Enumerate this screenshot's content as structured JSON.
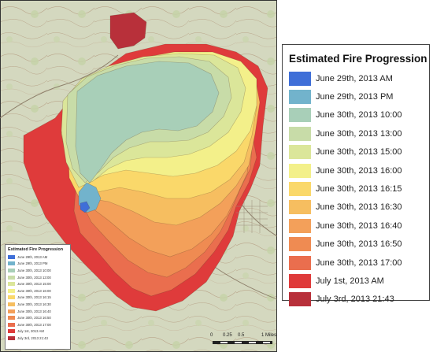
{
  "colors": {
    "june29_am": "#3f6fd8",
    "june29_pm": "#72b3cc",
    "june30_1000": "#a8cfb8",
    "june30_1300": "#c8dca8",
    "june30_1500": "#dbe69a",
    "june30_1600": "#f3f08a",
    "june30_1615": "#fad86a",
    "june30_1630": "#f6be60",
    "june30_1640": "#f3a05a",
    "june30_1650": "#ef8b52",
    "june30_1700": "#ea6e4e",
    "july1_am": "#df3b3b",
    "july3_2143": "#b8303a",
    "terrain": "#d4d8bf"
  },
  "small_legend": {
    "title": "Estimated Fire Progression",
    "items": [
      {
        "label": "June 29th, 2013 AM",
        "color": "#3f6fd8"
      },
      {
        "label": "June 29th, 2013 PM",
        "color": "#72b3cc"
      },
      {
        "label": "June 30th, 2013 10:00",
        "color": "#a8cfb8"
      },
      {
        "label": "June 30th, 2013 13:00",
        "color": "#c8dca8"
      },
      {
        "label": "June 30th, 2013 15:00",
        "color": "#dbe69a"
      },
      {
        "label": "June 30th, 2013 16:00",
        "color": "#f3f08a"
      },
      {
        "label": "June 30th, 2013 16:15",
        "color": "#fad86a"
      },
      {
        "label": "June 30th, 2013 16:30",
        "color": "#f6be60"
      },
      {
        "label": "June 30th, 2013 16:40",
        "color": "#f3a05a"
      },
      {
        "label": "June 30th, 2013 16:50",
        "color": "#ef8b52"
      },
      {
        "label": "June 30th, 2013 17:00",
        "color": "#ea6e4e"
      },
      {
        "label": "July 1st, 2013 AM",
        "color": "#df3b3b"
      },
      {
        "label": "July 3rd, 2013 21:43",
        "color": "#b8303a"
      }
    ]
  },
  "legend": {
    "title": "Estimated Fire Progression",
    "items": [
      {
        "label": "June 29th, 2013 AM",
        "color": "#3f6fd8"
      },
      {
        "label": "June 29th, 2013 PM",
        "color": "#72b3cc"
      },
      {
        "label": "June 30th, 2013 10:00",
        "color": "#a8cfb8"
      },
      {
        "label": "June 30th, 2013 13:00",
        "color": "#c8dca8"
      },
      {
        "label": "June 30th, 2013 15:00",
        "color": "#dbe69a"
      },
      {
        "label": "June 30th, 2013 16:00",
        "color": "#f3f08a"
      },
      {
        "label": "June 30th, 2013 16:15",
        "color": "#fad86a"
      },
      {
        "label": "June 30th, 2013 16:30",
        "color": "#f6be60"
      },
      {
        "label": "June 30th, 2013 16:40",
        "color": "#f3a05a"
      },
      {
        "label": "June 30th, 2013 16:50",
        "color": "#ef8b52"
      },
      {
        "label": "June 30th, 2013 17:00",
        "color": "#ea6e4e"
      },
      {
        "label": "July 1st, 2013 AM",
        "color": "#df3b3b"
      },
      {
        "label": "July 3rd, 2013 21:43",
        "color": "#b8303a"
      }
    ]
  },
  "scale": {
    "ticks": [
      "0",
      "0.25",
      "0.5",
      "1 Miles"
    ]
  }
}
